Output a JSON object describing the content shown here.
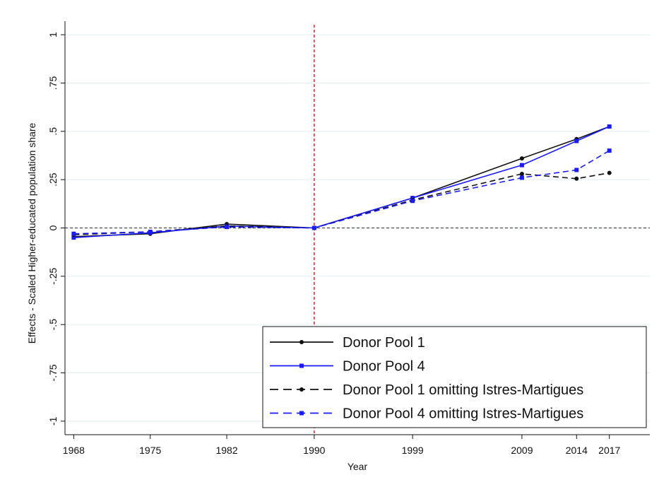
{
  "chart_data": {
    "type": "line",
    "x_label": "Year",
    "y_label": "Effects - Scaled Higher-educated population share",
    "x": [
      1968,
      1975,
      1982,
      1990,
      1999,
      2009,
      2014,
      2017
    ],
    "xlim": [
      1967.2,
      2020.7
    ],
    "xticks": [
      1968,
      1975,
      1982,
      1990,
      1999,
      2009,
      2014,
      2017
    ],
    "ylim": [
      -1.07,
      1.07
    ],
    "yticks": [
      -1,
      {
        "value": -0.75,
        "label": "-.75"
      },
      {
        "value": -0.5,
        "label": "-.5"
      },
      {
        "value": -0.25,
        "label": "-.25"
      },
      0,
      {
        "value": 0.25,
        "label": ".25"
      },
      {
        "value": 0.5,
        "label": ".5"
      },
      {
        "value": 0.75,
        "label": ".75"
      },
      1
    ],
    "grid": true,
    "legend": "bottom-right",
    "vline": 1990,
    "vline_color": "#d62728",
    "hline": 0,
    "series": [
      {
        "name": "Donor Pool 1",
        "color": "#111111",
        "dash": false,
        "marker": "circle",
        "values": [
          -0.045,
          -0.03,
          0.02,
          0,
          0.155,
          0.36,
          0.46,
          0.525
        ]
      },
      {
        "name": "Donor Pool 4",
        "color": "#1a1aff",
        "dash": false,
        "marker": "square",
        "values": [
          -0.05,
          -0.025,
          0.01,
          0,
          0.155,
          0.325,
          0.45,
          0.525
        ]
      },
      {
        "name": "Donor Pool 1 omitting Istres-Martigues",
        "color": "#111111",
        "dash": true,
        "marker": "circle",
        "values": [
          -0.035,
          -0.02,
          0.01,
          0,
          0.145,
          0.28,
          0.255,
          0.285
        ]
      },
      {
        "name": "Donor Pool 4 omitting Istres-Martigues",
        "color": "#1a1aff",
        "dash": true,
        "marker": "square",
        "values": [
          -0.03,
          -0.02,
          0.005,
          0,
          0.14,
          0.26,
          0.3,
          0.4
        ]
      }
    ]
  }
}
